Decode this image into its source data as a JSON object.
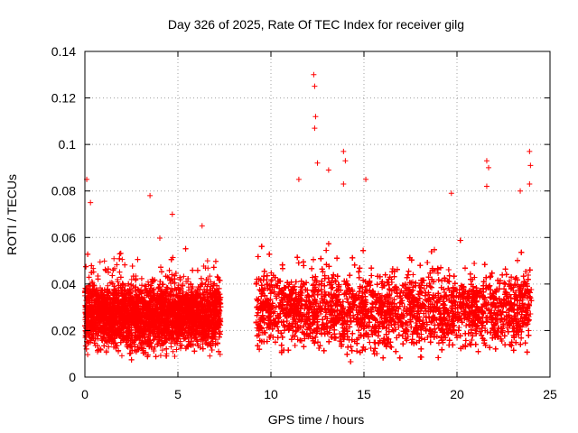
{
  "chart_data": {
    "type": "scatter",
    "title": "Day 326 of 2025, Rate Of TEC Index for receiver gilg",
    "xlabel": "GPS time / hours",
    "ylabel": "ROTI / TECUs",
    "xlim": [
      0,
      25
    ],
    "ylim": [
      0,
      0.14
    ],
    "xticks": [
      "0",
      "5",
      "10",
      "15",
      "20",
      "25"
    ],
    "yticks": [
      "0",
      "0.02",
      "0.04",
      "0.06",
      "0.08",
      "0.1",
      "0.12",
      "0.14"
    ],
    "grid": true,
    "marker": "+",
    "color": "#ff0000",
    "data_gap_hours": [
      7.3,
      9.2
    ],
    "segments": [
      {
        "x_start": 0.0,
        "x_end": 7.3,
        "baseline_min": 0.006,
        "baseline_max": 0.045
      },
      {
        "x_start": 9.2,
        "x_end": 24.0,
        "baseline_min": 0.005,
        "baseline_max": 0.05
      }
    ],
    "notable_points": [
      {
        "x": 0.1,
        "y": 0.085
      },
      {
        "x": 0.3,
        "y": 0.075
      },
      {
        "x": 3.5,
        "y": 0.078
      },
      {
        "x": 4.7,
        "y": 0.07
      },
      {
        "x": 6.3,
        "y": 0.065
      },
      {
        "x": 11.5,
        "y": 0.085
      },
      {
        "x": 12.3,
        "y": 0.13
      },
      {
        "x": 12.35,
        "y": 0.125
      },
      {
        "x": 12.4,
        "y": 0.112
      },
      {
        "x": 12.35,
        "y": 0.107
      },
      {
        "x": 12.5,
        "y": 0.092
      },
      {
        "x": 13.1,
        "y": 0.089
      },
      {
        "x": 13.9,
        "y": 0.097
      },
      {
        "x": 14.0,
        "y": 0.093
      },
      {
        "x": 13.9,
        "y": 0.083
      },
      {
        "x": 15.1,
        "y": 0.085
      },
      {
        "x": 19.7,
        "y": 0.079
      },
      {
        "x": 21.6,
        "y": 0.093
      },
      {
        "x": 21.7,
        "y": 0.09
      },
      {
        "x": 21.6,
        "y": 0.082
      },
      {
        "x": 23.4,
        "y": 0.08
      },
      {
        "x": 23.9,
        "y": 0.097
      },
      {
        "x": 23.95,
        "y": 0.091
      },
      {
        "x": 23.9,
        "y": 0.083
      }
    ]
  }
}
